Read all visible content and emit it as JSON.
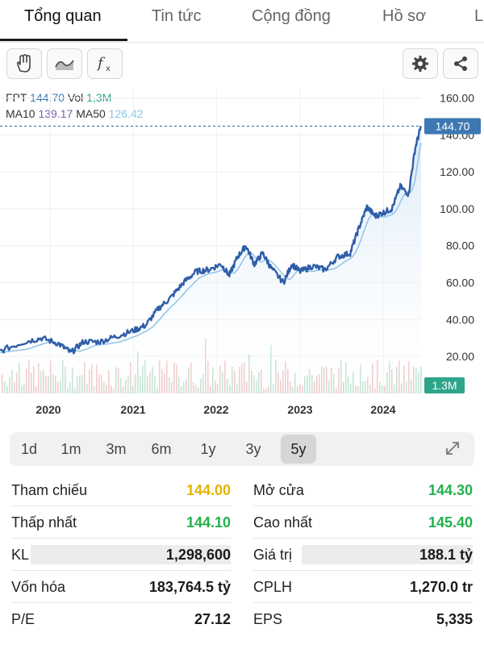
{
  "tabs": [
    "Tổng quan",
    "Tin tức",
    "Cộng đồng",
    "Hồ sơ",
    "L"
  ],
  "toolbar": {
    "icons": [
      "hand-icon",
      "wave-icon",
      "function-icon",
      "gear-icon",
      "share-icon"
    ]
  },
  "legend": {
    "symbol": "FPT",
    "price": "144.70",
    "vol_label": "Vol",
    "vol_value": "1,3M",
    "ma10_label": "MA10",
    "ma10_value": "139.17",
    "ma50_label": "MA50",
    "ma50_value": "126.42"
  },
  "colors": {
    "price_line": "#2f5ea8",
    "ma50_line": "#8fc3e8",
    "ma10_text": "#7a5fb0",
    "price_tag": "#3d78b3",
    "volume_tag": "#2ea58a",
    "up_green": "#22b14c",
    "ref_yellow": "#e5b300",
    "area_fill": "#d7e8f7"
  },
  "chart_data": {
    "type": "line",
    "x": [
      2019.4,
      2019.7,
      2019.9,
      2020.1,
      2020.25,
      2020.4,
      2020.6,
      2020.8,
      2021.0,
      2021.15,
      2021.3,
      2021.45,
      2021.6,
      2021.75,
      2021.9,
      2022.05,
      2022.15,
      2022.25,
      2022.35,
      2022.45,
      2022.55,
      2022.65,
      2022.8,
      2022.9,
      2023.0,
      2023.15,
      2023.3,
      2023.45,
      2023.6,
      2023.7,
      2023.8,
      2023.9,
      2024.0,
      2024.1,
      2024.2,
      2024.3,
      2024.38,
      2024.45
    ],
    "series": [
      {
        "values": [
          23,
          28,
          30,
          27,
          22,
          28,
          28,
          31,
          34,
          37,
          46,
          52,
          60,
          66,
          67,
          70,
          64,
          74,
          80,
          70,
          76,
          68,
          60,
          70,
          66,
          69,
          67,
          74,
          76,
          89,
          101,
          96,
          98,
          100,
          112,
          108,
          133,
          144.7
        ]
      }
    ],
    "y_ticks": [
      "160.00",
      "140.00",
      "120.00",
      "100.00",
      "80.00",
      "60.00",
      "40.00",
      "20.00"
    ],
    "ylim": [
      0,
      165
    ],
    "x_ticks": [
      "2020",
      "2021",
      "2022",
      "2023",
      "2024"
    ],
    "last_price_tag": "144.70",
    "volume_tag": "1.3M",
    "grid": true
  },
  "ranges": [
    "1d",
    "1m",
    "3m",
    "6m",
    "1y",
    "3y",
    "5y"
  ],
  "active_range": "5y",
  "stats": {
    "left": [
      {
        "label": "Tham chiếu",
        "value": "144.00"
      },
      {
        "label": "Thấp nhất",
        "value": "144.10"
      },
      {
        "label": "KL",
        "value": "1,298,600"
      },
      {
        "label": "Vốn hóa",
        "value": "183,764.5 tỷ"
      },
      {
        "label": "P/E",
        "value": "27.12"
      }
    ],
    "right": [
      {
        "label": "Mở cửa",
        "value": "144.30"
      },
      {
        "label": "Cao nhất",
        "value": "145.40"
      },
      {
        "label": "Giá trị",
        "value": "188.1 tỷ"
      },
      {
        "label": "CPLH",
        "value": "1,270.0 tr"
      },
      {
        "label": "EPS",
        "value": "5,335"
      }
    ]
  }
}
